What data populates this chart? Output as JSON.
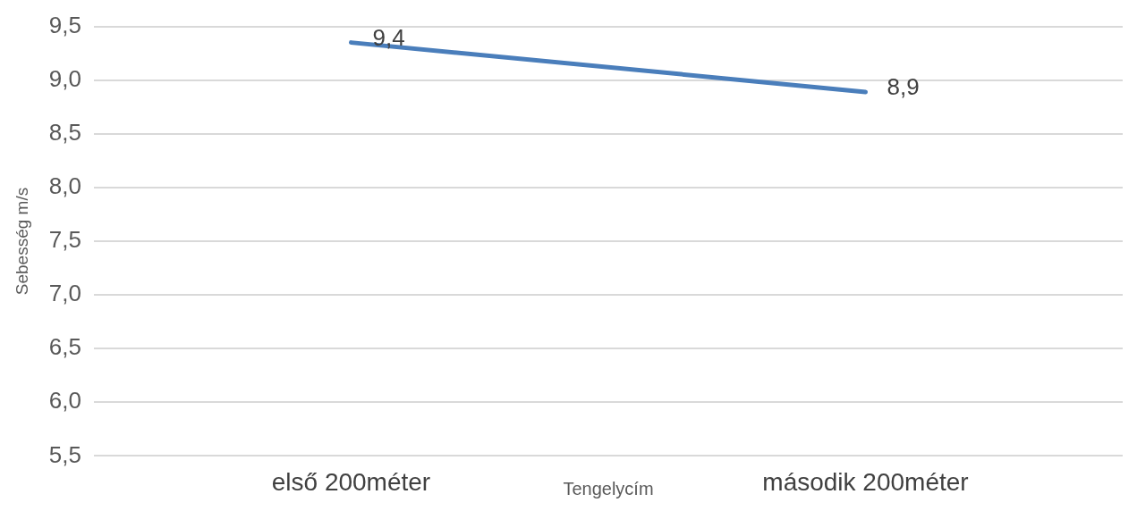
{
  "chart_data": {
    "type": "line",
    "xlabel": "Tengelycím",
    "ylabel": "Sebesség m/s",
    "categories": [
      "első 200méter",
      "második 200méter"
    ],
    "series": [
      {
        "color": "#4a7ebb",
        "values": [
          9.35,
          8.89
        ],
        "value_labels": [
          "9,4",
          "8,9"
        ]
      }
    ],
    "ylim": [
      5.5,
      9.5
    ],
    "yticks": [
      {
        "value": 5.5,
        "label": "5,5"
      },
      {
        "value": 6,
        "label": "6,0"
      },
      {
        "value": 6.5,
        "label": "6,5"
      },
      {
        "value": 7,
        "label": "7,0"
      },
      {
        "value": 7.5,
        "label": "7,5"
      },
      {
        "value": 8,
        "label": "8,0"
      },
      {
        "value": 8.5,
        "label": "8,5"
      },
      {
        "value": 9,
        "label": "9,0"
      },
      {
        "value": 9.5,
        "label": "9,5"
      }
    ],
    "grid": "y",
    "legend": false,
    "marker": "none",
    "line_style": "solid"
  }
}
